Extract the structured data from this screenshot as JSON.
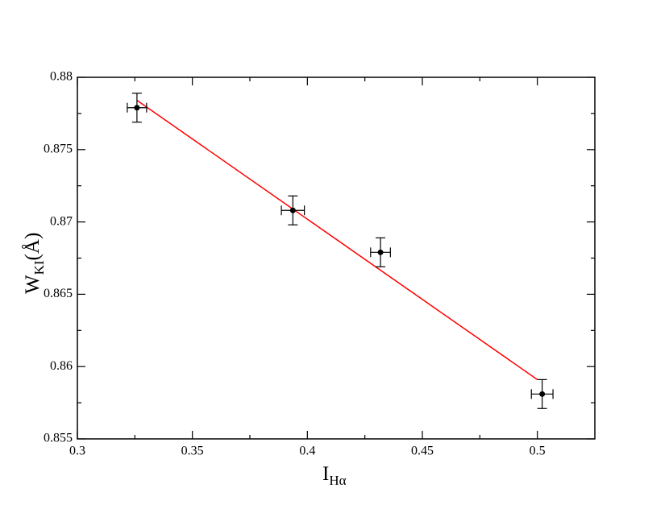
{
  "chart_data": {
    "type": "scatter",
    "xlabel": "I",
    "xlabel_sub": "Hα",
    "ylabel": "W",
    "ylabel_sub": "KI",
    "ylabel_suffix": "(Å)",
    "xlim": [
      0.3,
      0.525
    ],
    "ylim": [
      0.855,
      0.88
    ],
    "xticks": [
      0.3,
      0.35,
      0.4,
      0.45,
      0.5
    ],
    "yticks": [
      0.855,
      0.86,
      0.865,
      0.87,
      0.875,
      0.88
    ],
    "xticks_minor": [
      0.325,
      0.375,
      0.425,
      0.475
    ],
    "yticks_minor": [
      0.8575,
      0.8625,
      0.8675,
      0.8725,
      0.8775
    ],
    "series": [
      {
        "color": "#000000",
        "x": [
          0.3259,
          0.3937,
          0.4318,
          0.5021
        ],
        "values": [
          0.8779,
          0.8708,
          0.8679,
          0.8581
        ],
        "xerr": [
          0.0042,
          0.005,
          0.0043,
          0.0047
        ],
        "yerr": [
          0.001,
          0.001,
          0.001,
          0.001
        ]
      },
      {
        "type": "line",
        "color": "#ff0000",
        "x": [
          0.326,
          0.5
        ],
        "values": [
          0.8784,
          0.8591
        ]
      }
    ]
  }
}
